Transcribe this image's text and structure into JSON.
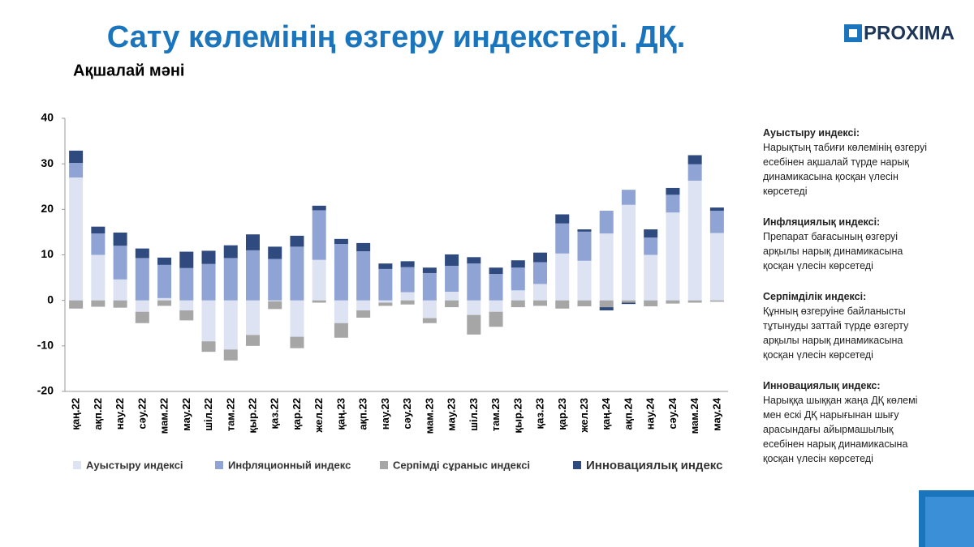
{
  "chart_data": {
    "type": "stacked_bar",
    "title": "Сату көлемінің өзгеру индекстері. ДҚ.",
    "subtitle": "Ақшалай мәні",
    "categories": [
      "қаң.22",
      "ақп.22",
      "нау.22",
      "сәу.22",
      "мам.22",
      "мау.22",
      "шіл.22",
      "там.22",
      "қыр.22",
      "қаз.22",
      "қар.22",
      "жел.22",
      "қаң.23",
      "ақп.23",
      "нау.23",
      "сәу.23",
      "мам.23",
      "мау.23",
      "шіл.23",
      "там.23",
      "қыр.23",
      "қаз.23",
      "қар.23",
      "жел.23",
      "қаң.24",
      "ақп.24",
      "нау.24",
      "сәу.24",
      "мам.24",
      "мау.24"
    ],
    "series": [
      {
        "name": "Ауыстыру индексі",
        "color": "#dde3f3",
        "values": [
          27,
          10,
          4.6,
          -2.5,
          0.5,
          -2.2,
          -9,
          -10.8,
          -7.6,
          -0.2,
          -8,
          8.9,
          -5,
          -2.2,
          -0.5,
          1.8,
          -3.9,
          1.9,
          -3.2,
          -2.5,
          2.2,
          3.6,
          10.3,
          8.7,
          14.7,
          21,
          10,
          19.3,
          26.3,
          14.8
        ]
      },
      {
        "name": "Инфляционный индекс",
        "color": "#8fa3d4",
        "values": [
          3.2,
          4.7,
          7.4,
          9.3,
          7.3,
          7.1,
          8,
          9.3,
          11,
          9.1,
          11.8,
          10.9,
          12.4,
          10.8,
          6.9,
          5.5,
          6,
          5.7,
          8.1,
          5.8,
          5,
          4.8,
          6.6,
          6.4,
          5,
          3.3,
          3.8,
          3.9,
          3.6,
          4.9
        ]
      },
      {
        "name": "Серпімді сұраныс индексі",
        "color": "#a6a6a6",
        "values": [
          -1.8,
          -1.4,
          -1.6,
          -2.5,
          -1.2,
          -2.2,
          -2.3,
          -2.4,
          -2.4,
          -1.7,
          -2.5,
          -0.5,
          -3.2,
          -1.6,
          -0.7,
          -0.9,
          -1.1,
          -1.5,
          -4.3,
          -3.3,
          -1.5,
          -1.2,
          -1.8,
          -1.3,
          -1.5,
          -0.5,
          -1.3,
          -0.7,
          -0.5,
          -0.3
        ]
      },
      {
        "name": "Инновациялық индекс",
        "color": "#2f4a7f",
        "values": [
          2.7,
          1.5,
          2.9,
          2.1,
          1.6,
          3.6,
          2.9,
          2.8,
          3.5,
          2.7,
          2.4,
          1,
          1.1,
          1.8,
          1.2,
          1.3,
          1.2,
          2.5,
          1.4,
          1.4,
          1.6,
          2.1,
          2,
          0.5,
          -0.7,
          -0.3,
          1.8,
          1.5,
          2,
          0.7
        ]
      }
    ],
    "ylim": [
      -20,
      40
    ],
    "yticks": [
      -20,
      -10,
      0,
      10,
      20,
      30,
      40
    ],
    "grid": false
  },
  "logo": "PROXIMA",
  "notes": [
    {
      "title": "Ауыстыру индексі:",
      "text": "Нарықтың табиғи көлемінің өзгеруі есебінен ақшалай түрде нарық динамикасына қосқан үлесін көрсетеді"
    },
    {
      "title": "Инфляциялық индексі:",
      "text": "Препарат бағасының өзгеруі арқылы нарық динамикасына қосқан үлесін көрсетеді"
    },
    {
      "title": "Серпімділік индексі:",
      "text": "Құнның өзгеруіне байланысты тұтынуды заттай түрде өзгерту арқылы нарық динамикасына қосқан үлесін көрсетеді"
    },
    {
      "title": "Инновациялық индекс:",
      "text": "Нарыққа шыққан жаңа ДҚ көлемі мен ескі ДҚ нарығынан шығу арасындағы айырмашылық есебінен нарық динамикасына қосқан үлесін көрсетеді"
    }
  ]
}
